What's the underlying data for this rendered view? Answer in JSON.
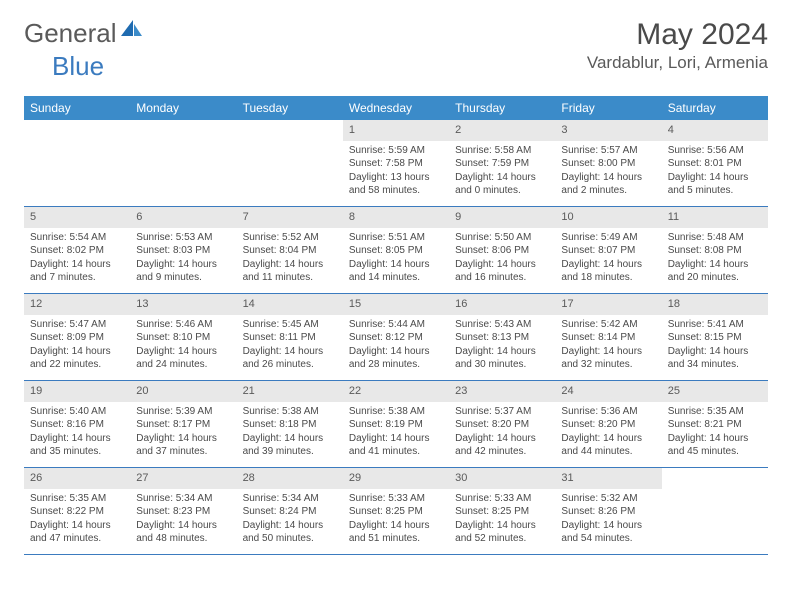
{
  "logo": {
    "text1": "General",
    "text2": "Blue"
  },
  "title": "May 2024",
  "location": "Vardablur, Lori, Armenia",
  "colors": {
    "header_bg": "#3b8bc9",
    "border": "#3b7bbf",
    "daynum_bg": "#e8e8e8",
    "text": "#4a4a4a",
    "logo_gray": "#5a5a5a",
    "logo_blue": "#3b7bbf"
  },
  "weekdays": [
    "Sunday",
    "Monday",
    "Tuesday",
    "Wednesday",
    "Thursday",
    "Friday",
    "Saturday"
  ],
  "blanks_before": 3,
  "days": [
    {
      "n": "1",
      "sunrise": "5:59 AM",
      "sunset": "7:58 PM",
      "daylight": "13 hours and 58 minutes."
    },
    {
      "n": "2",
      "sunrise": "5:58 AM",
      "sunset": "7:59 PM",
      "daylight": "14 hours and 0 minutes."
    },
    {
      "n": "3",
      "sunrise": "5:57 AM",
      "sunset": "8:00 PM",
      "daylight": "14 hours and 2 minutes."
    },
    {
      "n": "4",
      "sunrise": "5:56 AM",
      "sunset": "8:01 PM",
      "daylight": "14 hours and 5 minutes."
    },
    {
      "n": "5",
      "sunrise": "5:54 AM",
      "sunset": "8:02 PM",
      "daylight": "14 hours and 7 minutes."
    },
    {
      "n": "6",
      "sunrise": "5:53 AM",
      "sunset": "8:03 PM",
      "daylight": "14 hours and 9 minutes."
    },
    {
      "n": "7",
      "sunrise": "5:52 AM",
      "sunset": "8:04 PM",
      "daylight": "14 hours and 11 minutes."
    },
    {
      "n": "8",
      "sunrise": "5:51 AM",
      "sunset": "8:05 PM",
      "daylight": "14 hours and 14 minutes."
    },
    {
      "n": "9",
      "sunrise": "5:50 AM",
      "sunset": "8:06 PM",
      "daylight": "14 hours and 16 minutes."
    },
    {
      "n": "10",
      "sunrise": "5:49 AM",
      "sunset": "8:07 PM",
      "daylight": "14 hours and 18 minutes."
    },
    {
      "n": "11",
      "sunrise": "5:48 AM",
      "sunset": "8:08 PM",
      "daylight": "14 hours and 20 minutes."
    },
    {
      "n": "12",
      "sunrise": "5:47 AM",
      "sunset": "8:09 PM",
      "daylight": "14 hours and 22 minutes."
    },
    {
      "n": "13",
      "sunrise": "5:46 AM",
      "sunset": "8:10 PM",
      "daylight": "14 hours and 24 minutes."
    },
    {
      "n": "14",
      "sunrise": "5:45 AM",
      "sunset": "8:11 PM",
      "daylight": "14 hours and 26 minutes."
    },
    {
      "n": "15",
      "sunrise": "5:44 AM",
      "sunset": "8:12 PM",
      "daylight": "14 hours and 28 minutes."
    },
    {
      "n": "16",
      "sunrise": "5:43 AM",
      "sunset": "8:13 PM",
      "daylight": "14 hours and 30 minutes."
    },
    {
      "n": "17",
      "sunrise": "5:42 AM",
      "sunset": "8:14 PM",
      "daylight": "14 hours and 32 minutes."
    },
    {
      "n": "18",
      "sunrise": "5:41 AM",
      "sunset": "8:15 PM",
      "daylight": "14 hours and 34 minutes."
    },
    {
      "n": "19",
      "sunrise": "5:40 AM",
      "sunset": "8:16 PM",
      "daylight": "14 hours and 35 minutes."
    },
    {
      "n": "20",
      "sunrise": "5:39 AM",
      "sunset": "8:17 PM",
      "daylight": "14 hours and 37 minutes."
    },
    {
      "n": "21",
      "sunrise": "5:38 AM",
      "sunset": "8:18 PM",
      "daylight": "14 hours and 39 minutes."
    },
    {
      "n": "22",
      "sunrise": "5:38 AM",
      "sunset": "8:19 PM",
      "daylight": "14 hours and 41 minutes."
    },
    {
      "n": "23",
      "sunrise": "5:37 AM",
      "sunset": "8:20 PM",
      "daylight": "14 hours and 42 minutes."
    },
    {
      "n": "24",
      "sunrise": "5:36 AM",
      "sunset": "8:20 PM",
      "daylight": "14 hours and 44 minutes."
    },
    {
      "n": "25",
      "sunrise": "5:35 AM",
      "sunset": "8:21 PM",
      "daylight": "14 hours and 45 minutes."
    },
    {
      "n": "26",
      "sunrise": "5:35 AM",
      "sunset": "8:22 PM",
      "daylight": "14 hours and 47 minutes."
    },
    {
      "n": "27",
      "sunrise": "5:34 AM",
      "sunset": "8:23 PM",
      "daylight": "14 hours and 48 minutes."
    },
    {
      "n": "28",
      "sunrise": "5:34 AM",
      "sunset": "8:24 PM",
      "daylight": "14 hours and 50 minutes."
    },
    {
      "n": "29",
      "sunrise": "5:33 AM",
      "sunset": "8:25 PM",
      "daylight": "14 hours and 51 minutes."
    },
    {
      "n": "30",
      "sunrise": "5:33 AM",
      "sunset": "8:25 PM",
      "daylight": "14 hours and 52 minutes."
    },
    {
      "n": "31",
      "sunrise": "5:32 AM",
      "sunset": "8:26 PM",
      "daylight": "14 hours and 54 minutes."
    }
  ],
  "labels": {
    "sunrise": "Sunrise: ",
    "sunset": "Sunset: ",
    "daylight": "Daylight: "
  }
}
